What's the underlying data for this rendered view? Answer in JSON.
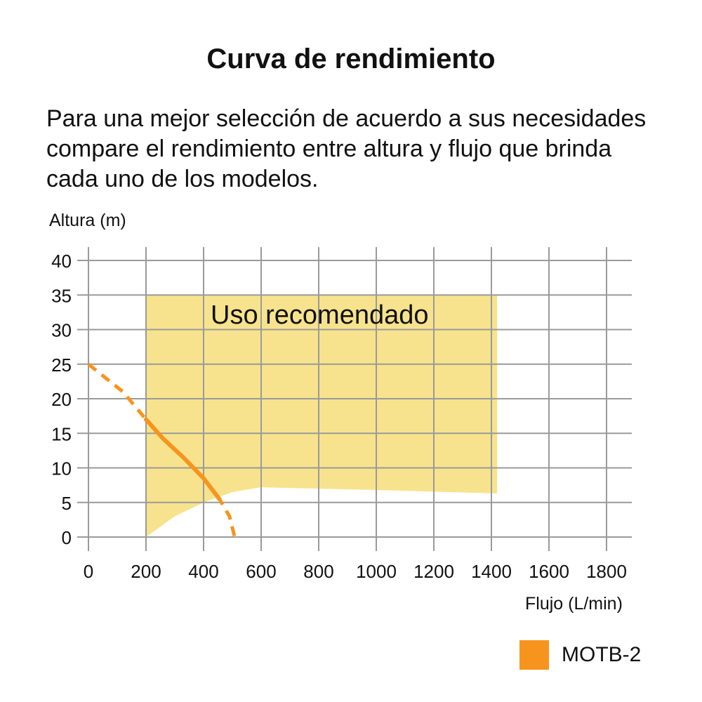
{
  "title": "Curva de rendimiento",
  "description_lines": [
    "Para una mejor selección de acuerdo a sus necesidades",
    "compare el rendimiento entre altura y flujo que brinda",
    "cada uno de los modelos."
  ],
  "colors": {
    "grid": "#9a9a9a",
    "region_fill": "#f7e38d",
    "curve": "#f7941d",
    "text": "#111111"
  },
  "chart_data": {
    "type": "line",
    "xlabel": "Flujo (L/min)",
    "ylabel": "Altura (m)",
    "xlim": [
      0,
      1900
    ],
    "ylim": [
      0,
      40
    ],
    "x_ticks": [
      0,
      200,
      400,
      600,
      800,
      1000,
      1200,
      1400,
      1600,
      1800
    ],
    "y_ticks": [
      0,
      5,
      10,
      15,
      20,
      25,
      30,
      35,
      40
    ],
    "grid": true,
    "region": {
      "label": "Uso recomendado",
      "outline": [
        {
          "x": 200,
          "y": 35
        },
        {
          "x": 1420,
          "y": 35
        },
        {
          "x": 1420,
          "y": 6.3
        },
        {
          "x": 1000,
          "y": 6.8
        },
        {
          "x": 600,
          "y": 7.2
        },
        {
          "x": 500,
          "y": 6.5
        },
        {
          "x": 400,
          "y": 5.0
        },
        {
          "x": 300,
          "y": 3.0
        },
        {
          "x": 200,
          "y": 0
        }
      ]
    },
    "series": [
      {
        "name": "MOTB-2",
        "points": [
          {
            "x": 0,
            "y": 25
          },
          {
            "x": 120,
            "y": 21
          },
          {
            "x": 200,
            "y": 17
          },
          {
            "x": 260,
            "y": 14.2
          },
          {
            "x": 330,
            "y": 11.5
          },
          {
            "x": 400,
            "y": 8.5
          },
          {
            "x": 455,
            "y": 5.5
          },
          {
            "x": 490,
            "y": 3
          },
          {
            "x": 508,
            "y": 0
          }
        ],
        "solid_range": [
          200,
          455
        ]
      }
    ],
    "legend": {
      "position": "bottom-right"
    }
  }
}
